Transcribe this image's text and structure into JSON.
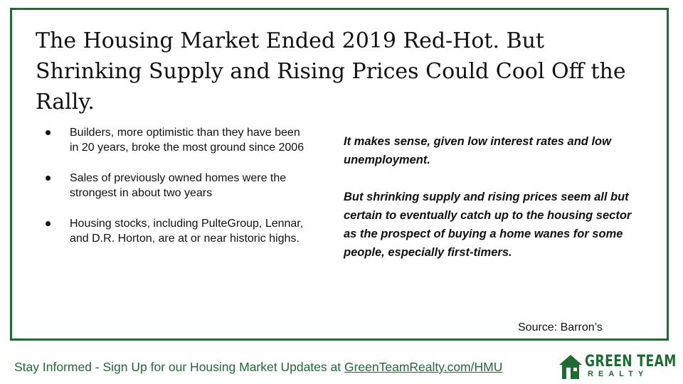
{
  "title": "The Housing Market Ended 2019 Red-Hot. But Shrinking Supply and Rising Prices Could Cool Off the Rally.",
  "bullets": [
    "Builders, more optimistic than they have been in 20 years, broke the most ground since 2006",
    "Sales of previously owned homes were the strongest in about two years",
    "Housing stocks, including PulteGroup, Lennar, and D.R. Horton, are at or near historic highs."
  ],
  "quote": {
    "p1": "It makes sense, given low interest rates and low unemployment.",
    "p2": "But shrinking supply and rising prices seem all but certain to eventually catch up to the housing sector as the prospect of buying a home wanes for some people, especially first-timers."
  },
  "source": "Source: Barron’s",
  "footer": {
    "text": "Stay Informed - Sign Up for our Housing Market Updates at ",
    "link": "GreenTeamRealty.com/HMU"
  },
  "logo": {
    "line1": "GREEN TEAM",
    "line2": "REALTY",
    "icon": "house-icon",
    "color": "#1f6b33"
  },
  "colors": {
    "accent": "#1f6b33",
    "text": "#111111"
  }
}
